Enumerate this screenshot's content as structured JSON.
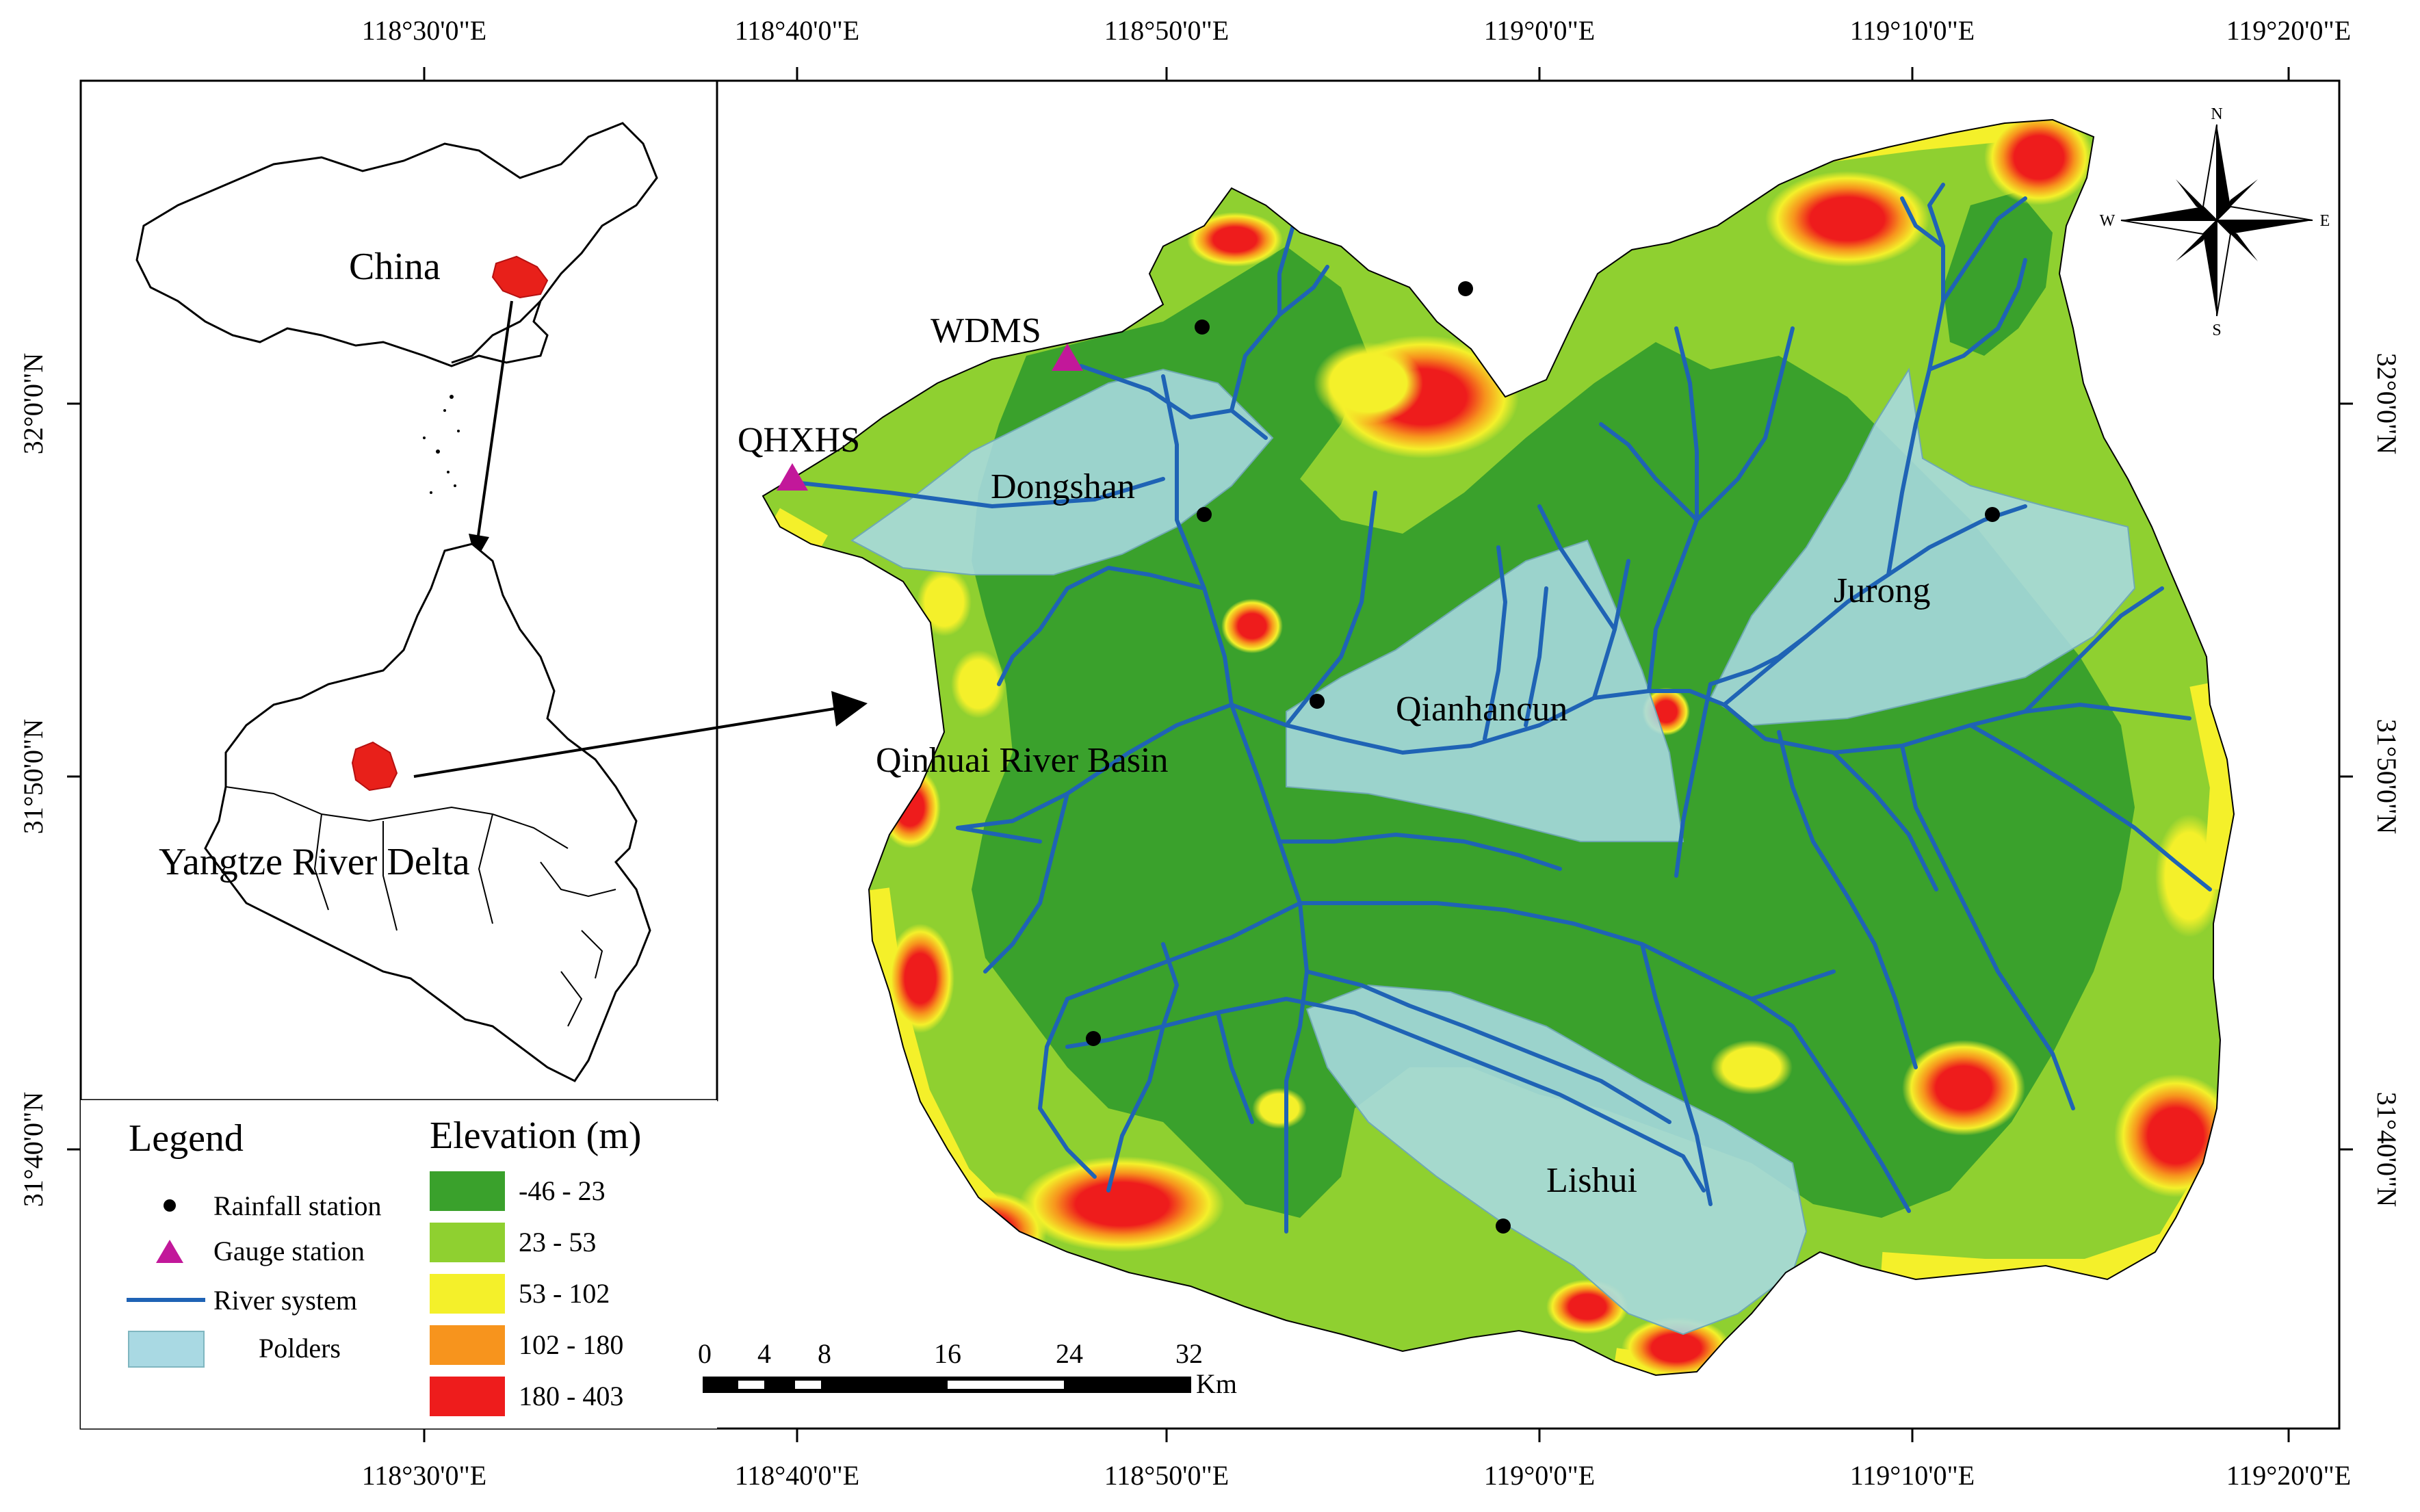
{
  "axes": {
    "top": [
      "118°30'0\"E",
      "118°40'0\"E",
      "118°50'0\"E",
      "119°0'0\"E",
      "119°10'0\"E",
      "119°20'0\"E"
    ],
    "bottom": [
      "118°30'0\"E",
      "118°40'0\"E",
      "118°50'0\"E",
      "119°0'0\"E",
      "119°10'0\"E",
      "119°20'0\"E"
    ],
    "left": [
      "32°0'0\"N",
      "31°50'0\"N",
      "31°40'0\"N"
    ],
    "right": [
      "32°0'0\"N",
      "31°50'0\"N",
      "31°40'0\"N"
    ]
  },
  "inset": {
    "china_label": "China",
    "delta_label": "Yangtze River Delta"
  },
  "map_labels": {
    "basin": "Qinhuai River Basin",
    "polders": [
      "Dongshan",
      "Qianhancun",
      "Jurong",
      "Lishui"
    ],
    "gauges": [
      "WDMS",
      "QHXHS"
    ]
  },
  "compass": {
    "n": "N",
    "s": "S",
    "e": "E",
    "w": "W"
  },
  "legend": {
    "title": "Legend",
    "items": [
      "Rainfall station",
      "Gauge station",
      "River system",
      "Polders"
    ]
  },
  "elevation": {
    "title": "Elevation (m)",
    "classes": [
      {
        "label": "-46 - 23",
        "color": "#3aa12c"
      },
      {
        "label": "23 - 53",
        "color": "#8fd030"
      },
      {
        "label": "53 - 102",
        "color": "#f4f02a"
      },
      {
        "label": "102 - 180",
        "color": "#f7941d"
      },
      {
        "label": "180 - 403",
        "color": "#ee1c1c"
      }
    ]
  },
  "scale_bar": {
    "ticks": [
      "0",
      "4",
      "8",
      "16",
      "24",
      "32"
    ],
    "unit": "Km"
  },
  "colors": {
    "river": "#1f63b5",
    "polder": "#a9d9e3",
    "gauge": "#c2189a",
    "china_highlight": "#e8201a"
  }
}
